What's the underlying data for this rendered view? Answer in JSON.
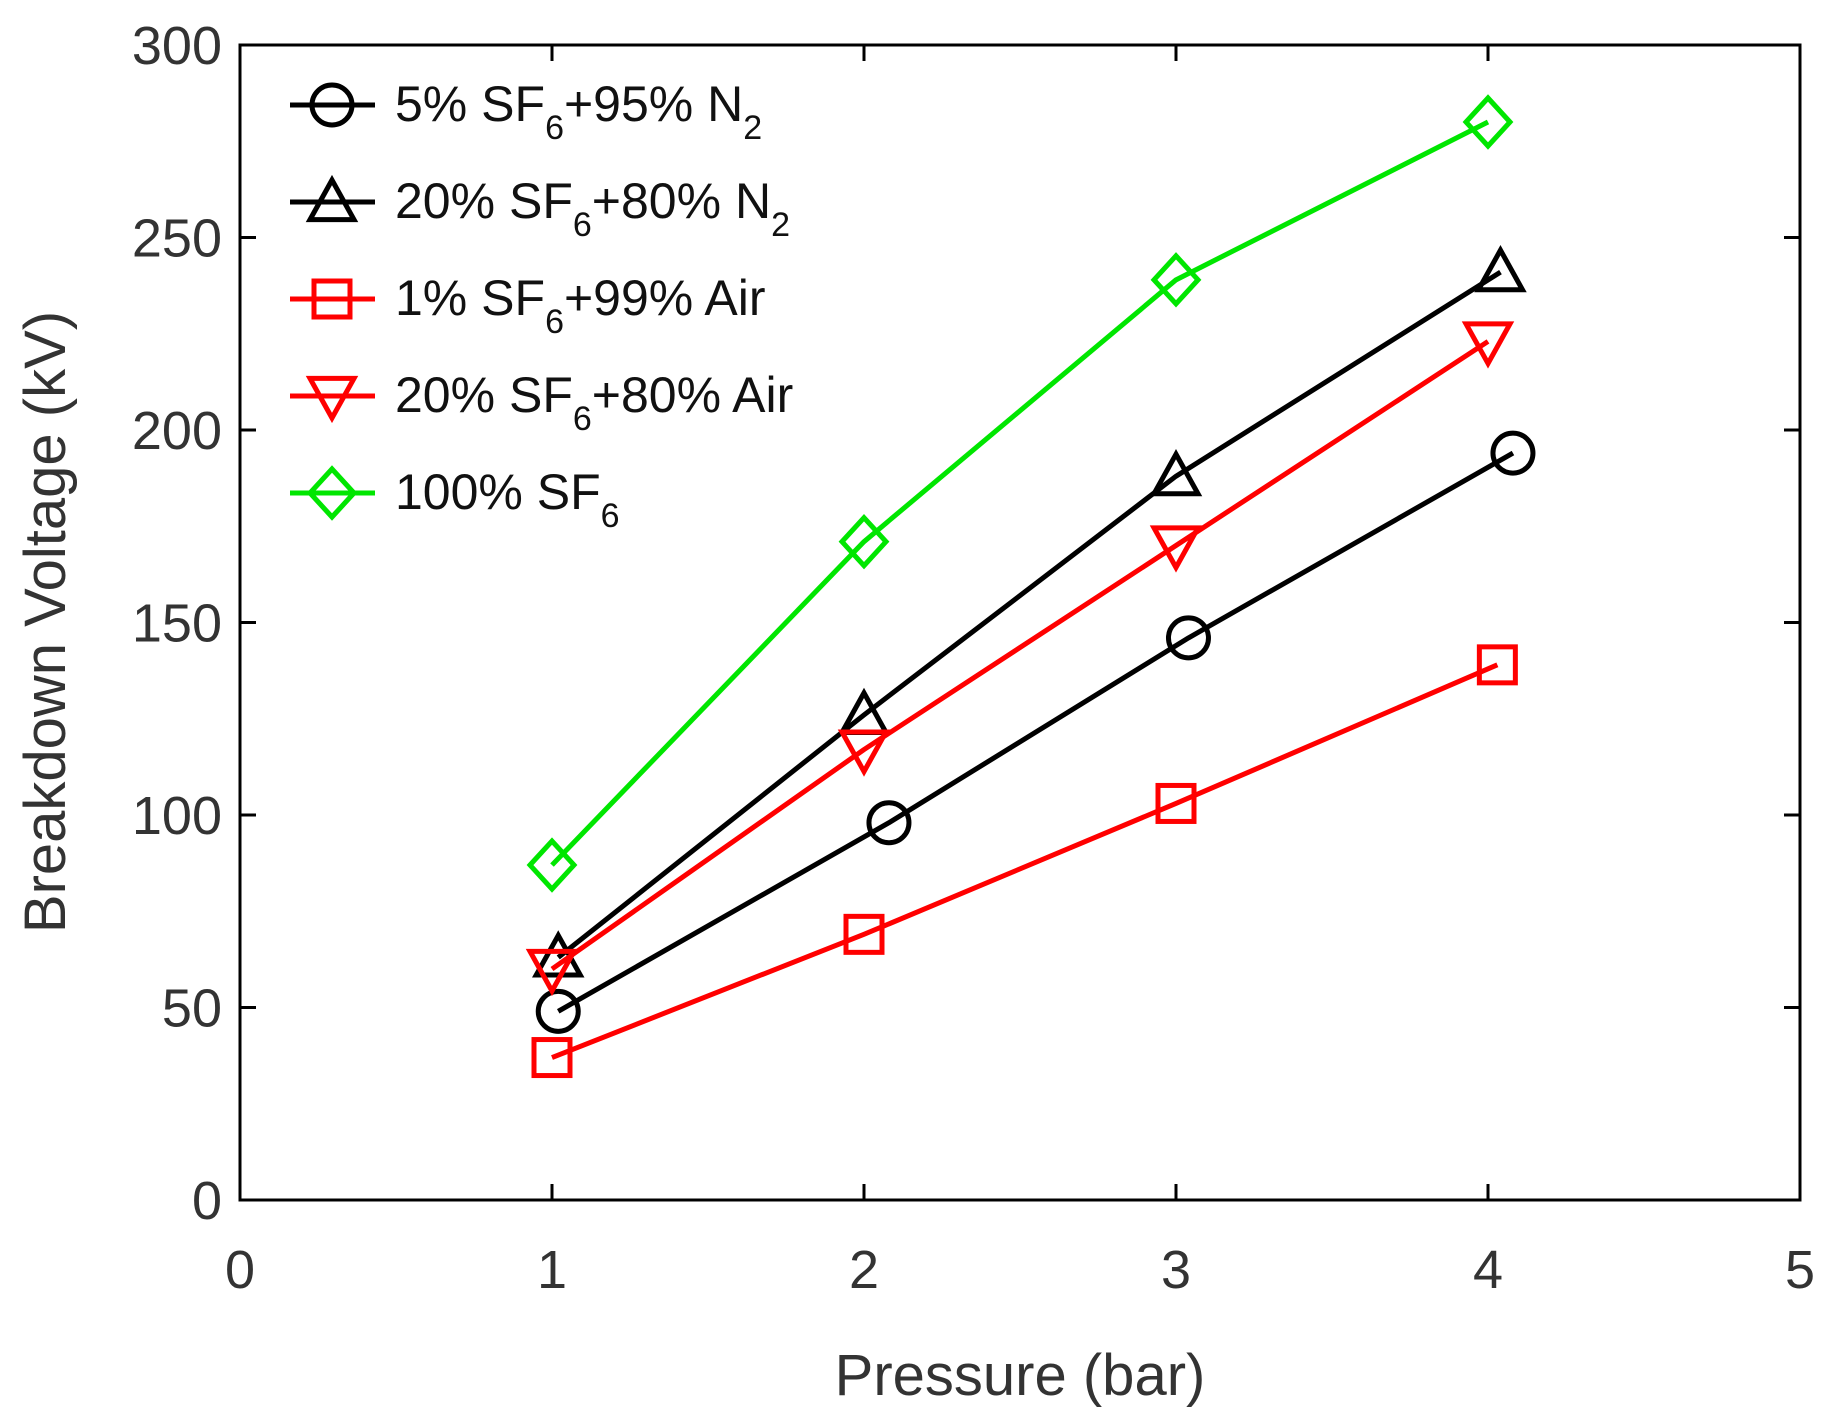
{
  "chart_data": {
    "type": "line",
    "title": "",
    "xlabel": "Pressure (bar)",
    "ylabel": "Breakdown Voltage (kV)",
    "xlim": [
      0,
      5
    ],
    "ylim": [
      0,
      300
    ],
    "xticks": [
      0,
      1,
      2,
      3,
      4,
      5
    ],
    "yticks": [
      0,
      50,
      100,
      150,
      200,
      250,
      300
    ],
    "xtick_labels": [
      "0",
      "1",
      "2",
      "3",
      "4",
      "5"
    ],
    "ytick_labels": [
      "0",
      "50",
      "100",
      "150",
      "200",
      "250",
      "300"
    ],
    "grid": false,
    "legend_position": "top-left",
    "series": [
      {
        "name": "5% SF6+95% N2",
        "label_parts": [
          {
            "text": "5% SF"
          },
          {
            "text": "6",
            "sub": true
          },
          {
            "text": "+95% N"
          },
          {
            "text": "2",
            "sub": true
          }
        ],
        "color": "#000000",
        "marker": "circle",
        "x": [
          1.02,
          2.08,
          3.04,
          4.08
        ],
        "y": [
          49,
          98,
          146,
          194
        ]
      },
      {
        "name": "20% SF6+80% N2",
        "label_parts": [
          {
            "text": "20% SF"
          },
          {
            "text": "6",
            "sub": true
          },
          {
            "text": "+80% N"
          },
          {
            "text": "2",
            "sub": true
          }
        ],
        "color": "#000000",
        "marker": "triangle-up",
        "x": [
          1.02,
          2.0,
          3.0,
          4.04
        ],
        "y": [
          63,
          126,
          188,
          241
        ]
      },
      {
        "name": "1% SF6+99% Air",
        "label_parts": [
          {
            "text": "1% SF"
          },
          {
            "text": "6",
            "sub": true
          },
          {
            "text": "+99% Air"
          }
        ],
        "color": "#ff0000",
        "marker": "square",
        "x": [
          1.0,
          2.0,
          3.0,
          4.03
        ],
        "y": [
          37,
          69,
          103,
          139
        ]
      },
      {
        "name": "20% SF6+80% Air",
        "label_parts": [
          {
            "text": "20% SF"
          },
          {
            "text": "6",
            "sub": true
          },
          {
            "text": "+80% Air"
          }
        ],
        "color": "#ff0000",
        "marker": "triangle-down",
        "x": [
          1.0,
          2.0,
          3.0,
          4.0
        ],
        "y": [
          60,
          117,
          170,
          223
        ]
      },
      {
        "name": "100% SF6",
        "label_parts": [
          {
            "text": "100% SF"
          },
          {
            "text": "6",
            "sub": true
          }
        ],
        "color": "#00e600",
        "marker": "diamond",
        "x": [
          1.0,
          2.0,
          3.0,
          4.0
        ],
        "y": [
          87,
          171,
          239,
          280
        ]
      }
    ]
  }
}
